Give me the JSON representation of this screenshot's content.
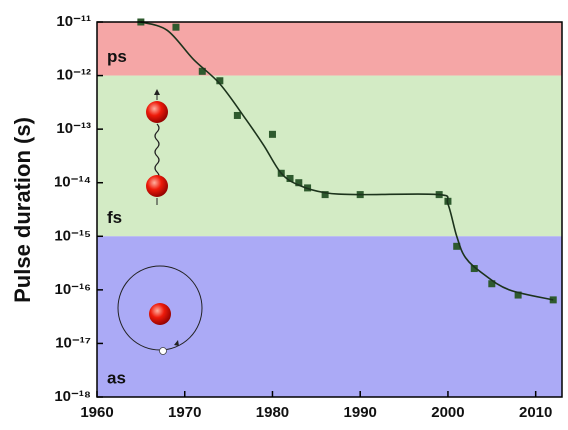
{
  "chart_data": {
    "type": "scatter",
    "ylabel": "Pulse duration (s)",
    "log_y": true,
    "xlim": [
      1960,
      2013
    ],
    "ylim": [
      1e-18,
      1e-11
    ],
    "xticks": [
      1960,
      1970,
      1980,
      1990,
      2000,
      2010
    ],
    "yticks": [
      {
        "value": 1e-18,
        "label": "10⁻¹⁸"
      },
      {
        "value": 1e-17,
        "label": "10⁻¹⁷"
      },
      {
        "value": 1e-16,
        "label": "10⁻¹⁶"
      },
      {
        "value": 1e-15,
        "label": "10⁻¹⁵"
      },
      {
        "value": 1e-14,
        "label": "10⁻¹⁴"
      },
      {
        "value": 1e-13,
        "label": "10⁻¹³"
      },
      {
        "value": 1e-12,
        "label": "10⁻¹²"
      },
      {
        "value": 1e-11,
        "label": "10⁻¹¹"
      }
    ],
    "bands": [
      {
        "label": "ps",
        "from": 1e-12,
        "to": 1e-11,
        "color": "#f5a6a6"
      },
      {
        "label": "fs",
        "from": 1e-15,
        "to": 1e-12,
        "color": "#d3ebc5"
      },
      {
        "label": "as",
        "from": 1e-18,
        "to": 1e-15,
        "color": "#abaaf6"
      }
    ],
    "series": [
      {
        "color": "#2e5a2e",
        "x": [
          1965,
          1969,
          1972,
          1974,
          1976,
          1980,
          1981,
          1982,
          1983,
          1984,
          1986,
          1990,
          1999,
          2000,
          2001,
          2003,
          2005,
          2008,
          2012
        ],
        "values": [
          1e-11,
          8e-12,
          1.2e-12,
          8e-13,
          1.8e-13,
          8e-14,
          1.5e-14,
          1.2e-14,
          1e-14,
          8e-15,
          6e-15,
          6e-15,
          6e-15,
          4.5e-15,
          6.5e-16,
          2.5e-16,
          1.3e-16,
          8e-17,
          6.5e-17
        ]
      },
      {
        "color": "#1c331c",
        "line": true,
        "x": [
          1965,
          1968,
          1971,
          1974,
          1977,
          1979,
          1981,
          1983,
          1986,
          1990,
          1999,
          2000,
          2001,
          2002,
          2004,
          2007,
          2012
        ],
        "values": [
          1e-11,
          7e-12,
          2e-12,
          7e-13,
          1.5e-13,
          5e-14,
          1.5e-14,
          9e-15,
          6.5e-15,
          6e-15,
          6e-15,
          4e-15,
          1e-15,
          4e-16,
          2e-16,
          1e-16,
          6.5e-17
        ]
      }
    ]
  }
}
